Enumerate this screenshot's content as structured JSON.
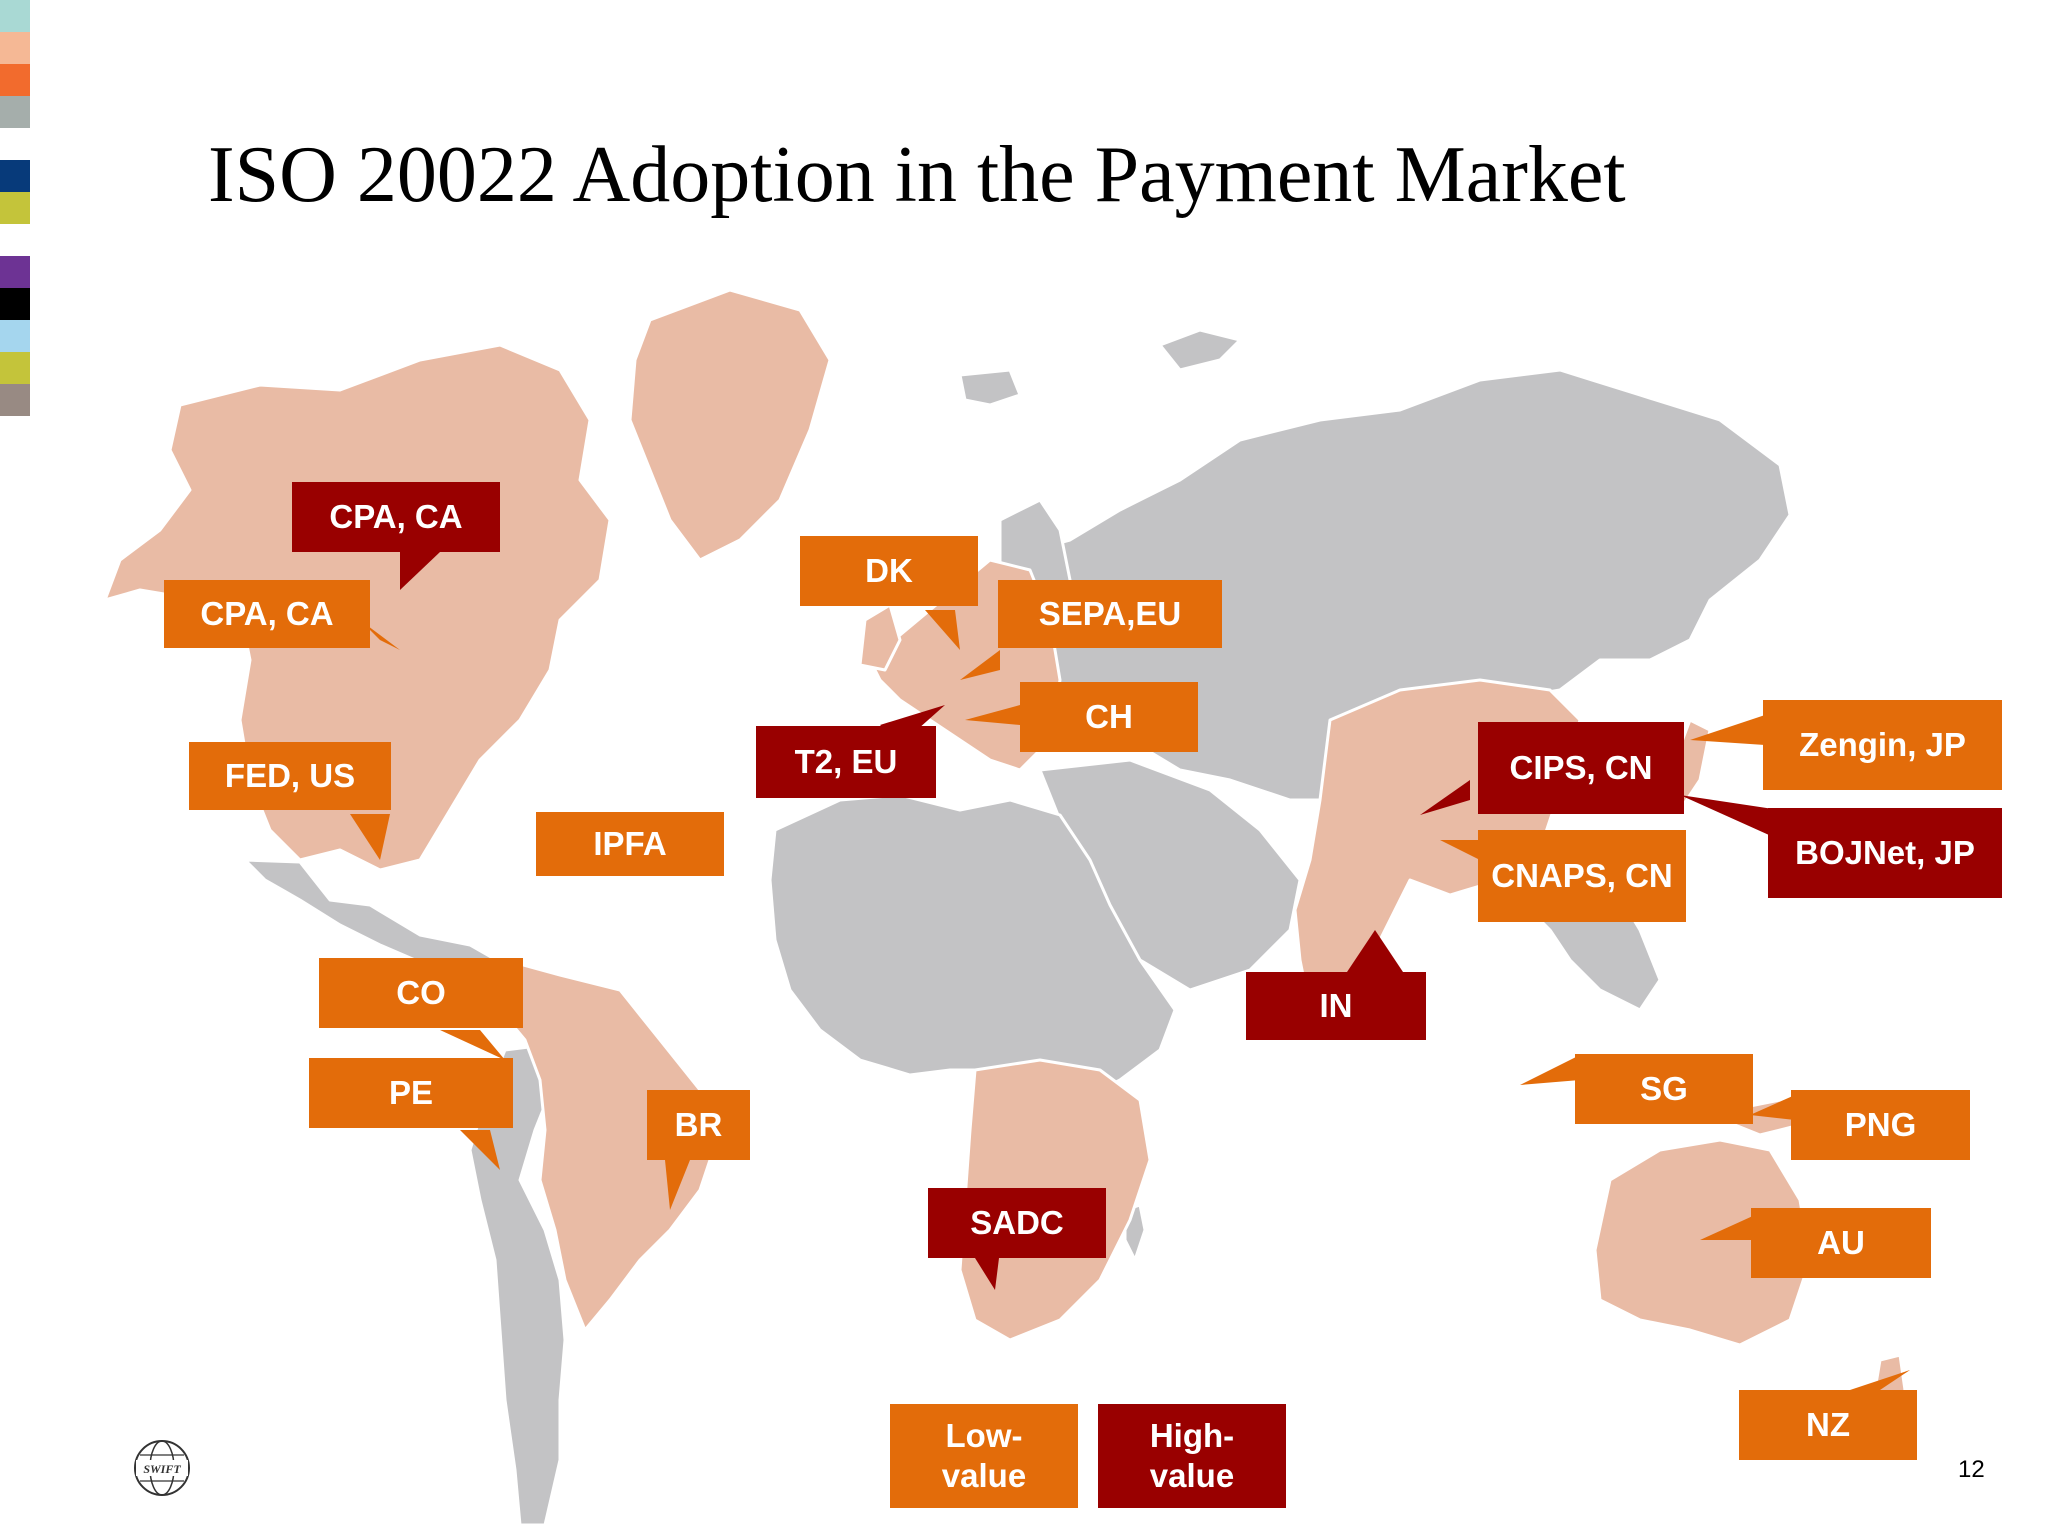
{
  "title": "ISO 20022 Adoption in the Payment Market",
  "colors": {
    "low_value": "#e36c0a",
    "high_value": "#990000",
    "adopting_land": "#e9bba5",
    "other_land": "#c3c3c5",
    "stripes": [
      "#a9d9d4",
      "#f5b895",
      "#f26b2d",
      "#a5aeab",
      "#ffffff",
      "#073a7a",
      "#c4c43a",
      "#ffffff",
      "#6d3394",
      "#000000",
      "#a5d6ee",
      "#c4c43a",
      "#988a83"
    ]
  },
  "labels": [
    {
      "key": "cpa_ca_hv",
      "text": "CPA, CA",
      "value_type": "high"
    },
    {
      "key": "cpa_ca_lv",
      "text": "CPA, CA",
      "value_type": "low"
    },
    {
      "key": "fed_us",
      "text": "FED, US",
      "value_type": "low"
    },
    {
      "key": "ipfa",
      "text": "IPFA",
      "value_type": "low"
    },
    {
      "key": "co",
      "text": "CO",
      "value_type": "low"
    },
    {
      "key": "pe",
      "text": "PE",
      "value_type": "low"
    },
    {
      "key": "br",
      "text": "BR",
      "value_type": "low"
    },
    {
      "key": "dk",
      "text": "DK",
      "value_type": "low"
    },
    {
      "key": "sepa_eu",
      "text": "SEPA,EU",
      "value_type": "low"
    },
    {
      "key": "ch",
      "text": "CH",
      "value_type": "low"
    },
    {
      "key": "t2_eu",
      "text": "T2, EU",
      "value_type": "high"
    },
    {
      "key": "sadc",
      "text": "SADC",
      "value_type": "high"
    },
    {
      "key": "cips_cn",
      "text": "CIPS, CN",
      "value_type": "high"
    },
    {
      "key": "cnaps_cn",
      "text": "CNAPS, CN",
      "value_type": "low"
    },
    {
      "key": "zengin_jp",
      "text": "Zengin, JP",
      "value_type": "low"
    },
    {
      "key": "bojnet_jp",
      "text": "BOJNet, JP",
      "value_type": "high"
    },
    {
      "key": "in",
      "text": "IN",
      "value_type": "high"
    },
    {
      "key": "sg",
      "text": "SG",
      "value_type": "low"
    },
    {
      "key": "png",
      "text": "PNG",
      "value_type": "low"
    },
    {
      "key": "au",
      "text": "AU",
      "value_type": "low"
    },
    {
      "key": "nz",
      "text": "NZ",
      "value_type": "low"
    }
  ],
  "legend": {
    "low": "Low-value",
    "high": "High-value"
  },
  "logo_text": "SWIFT",
  "page_number": "12"
}
